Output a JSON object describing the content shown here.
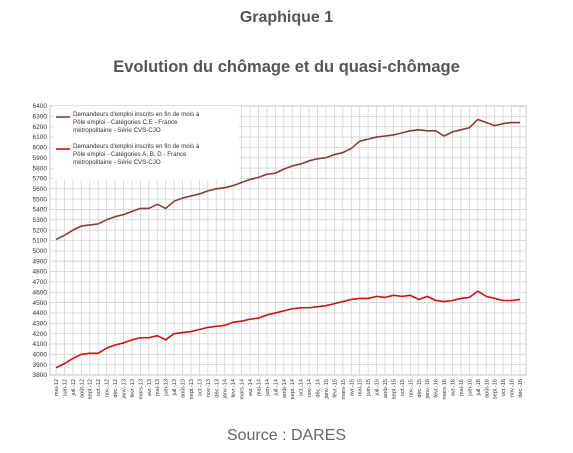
{
  "caption": "Graphique 1",
  "title": "Evolution du chômage et du quasi-chômage",
  "source": "Source : DARES",
  "colors": {
    "series1": "#8b3a3a",
    "series2": "#cc1111",
    "grid": "#d4d4d4"
  },
  "chart_data": {
    "type": "line",
    "ylim": [
      3800,
      6400
    ],
    "yticks": [
      3800,
      3900,
      4000,
      4100,
      4200,
      4300,
      4400,
      4500,
      4600,
      4700,
      4800,
      4900,
      5000,
      5100,
      5200,
      5300,
      5400,
      5500,
      5600,
      5700,
      5800,
      5900,
      6000,
      6100,
      6200,
      6300,
      6400
    ],
    "grid": true,
    "legend_position": "top-left",
    "x": [
      "mai-12",
      "juin-12",
      "juil.-12",
      "août-12",
      "sept.-12",
      "oct.-12",
      "nov.-12",
      "déc.-12",
      "janv.-13",
      "févr.-13",
      "mars-13",
      "avr.-13",
      "mai-13",
      "juin-13",
      "juil.-13",
      "août-13",
      "sept.-13",
      "oct.-13",
      "nov.-13",
      "déc.-13",
      "janv.-14",
      "févr.-14",
      "mars-14",
      "avr.-14",
      "mai-14",
      "juin-14",
      "juil.-14",
      "août-14",
      "sept.-14",
      "oct.-14",
      "nov.-14",
      "déc.-14",
      "janv.-15",
      "févr.-15",
      "mars-15",
      "avr.-15",
      "mai-15",
      "juin-15",
      "juil.-15",
      "août-15",
      "sept.-15",
      "oct.-15",
      "nov.-15",
      "déc.-15",
      "janv.-16",
      "févr.-16",
      "mars-16",
      "avr.-16",
      "mai-16",
      "juin-16",
      "juil.-16",
      "août-16",
      "sept.-16",
      "oct.-16",
      "nov.-16",
      "déc.-16"
    ],
    "series": [
      {
        "name": "Demandeurs d'emploi inscrits en fin de mois à Pôle emploi - Catégories C,E - France métropolitaine - Série CVS-CJO",
        "values": [
          5110,
          5150,
          5200,
          5240,
          5250,
          5260,
          5300,
          5330,
          5350,
          5380,
          5410,
          5410,
          5450,
          5410,
          5480,
          5510,
          5530,
          5550,
          5580,
          5600,
          5610,
          5630,
          5660,
          5690,
          5710,
          5740,
          5750,
          5790,
          5820,
          5840,
          5870,
          5890,
          5900,
          5930,
          5950,
          5990,
          6060,
          6080,
          6100,
          6110,
          6120,
          6140,
          6160,
          6170,
          6160,
          6160,
          6110,
          6150,
          6170,
          6190,
          6270,
          6240,
          6210,
          6230,
          6240,
          6240
        ]
      },
      {
        "name": "Demandeurs d'emploi inscrits en fin de mois à Pôle emploi - Catégories A, B, D - France métropolitaine - Série CVS-CJO",
        "values": [
          3870,
          3910,
          3960,
          4000,
          4010,
          4010,
          4060,
          4090,
          4110,
          4140,
          4160,
          4160,
          4180,
          4140,
          4200,
          4210,
          4220,
          4240,
          4260,
          4270,
          4280,
          4310,
          4320,
          4340,
          4350,
          4380,
          4400,
          4420,
          4440,
          4450,
          4450,
          4460,
          4470,
          4490,
          4510,
          4530,
          4540,
          4540,
          4560,
          4550,
          4570,
          4560,
          4570,
          4530,
          4560,
          4520,
          4510,
          4520,
          4540,
          4550,
          4610,
          4560,
          4540,
          4520,
          4520,
          4530
        ]
      }
    ]
  }
}
